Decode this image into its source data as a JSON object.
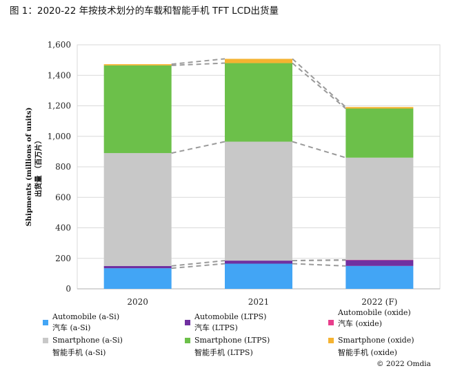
{
  "page_title": "图 1：2020-22 年按技术划分的车载和智能手机 TFT LCD出货量",
  "copyright": "© 2022 Omdia",
  "colors": {
    "auto_asi": "#42a5f5",
    "auto_ltps": "#7030a0",
    "auto_oxide": "#e83e8c",
    "phone_asi": "#c8c8c8",
    "phone_ltps": "#6cc04a",
    "phone_oxide": "#f5b331",
    "grid": "#d9d9d9",
    "connector": "#9a9a9a"
  },
  "chart_data": {
    "type": "bar",
    "stacked": true,
    "categories": [
      "2020",
      "2021",
      "2022 (F)"
    ],
    "ylabel": "Shipments (millions of units)",
    "ylabel_cn": "出货量 （百万片）",
    "ylim": [
      0,
      1600
    ],
    "yticks": [
      0,
      200,
      400,
      600,
      800,
      1000,
      1200,
      1400,
      1600
    ],
    "ytick_labels": [
      "0",
      "200",
      "400",
      "600",
      "800",
      "1,000",
      "1,200",
      "1,400",
      "1,600"
    ],
    "grid": true,
    "connector_lines": "dashed",
    "series": [
      {
        "name": "Automobile (a-Si)",
        "name_cn": "汽车 (a-Si)",
        "color_key": "auto_asi",
        "values": [
          135,
          165,
          150
        ]
      },
      {
        "name": "Automobile (LTPS)",
        "name_cn": "汽车 (LTPS)",
        "color_key": "auto_ltps",
        "values": [
          15,
          20,
          38
        ]
      },
      {
        "name": "Automobile (oxide)",
        "name_cn": "汽车 (oxide)",
        "color_key": "auto_oxide",
        "values": [
          0,
          0,
          2
        ]
      },
      {
        "name": "Smartphone (a-Si)",
        "name_cn": "智能手机 (a-Si)",
        "color_key": "phone_asi",
        "values": [
          740,
          780,
          670
        ]
      },
      {
        "name": "Smartphone (LTPS)",
        "name_cn": "智能手机 (LTPS)",
        "color_key": "phone_ltps",
        "values": [
          575,
          515,
          322
        ]
      },
      {
        "name": "Smartphone (oxide)",
        "name_cn": "智能手机 (oxide)",
        "color_key": "phone_oxide",
        "values": [
          8,
          28,
          10
        ]
      }
    ]
  }
}
